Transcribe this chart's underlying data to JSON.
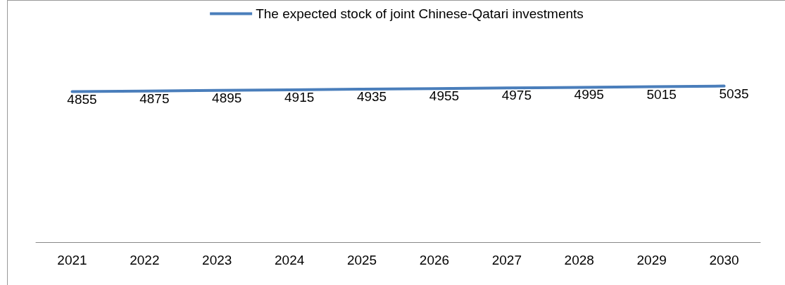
{
  "chart_data": {
    "type": "line",
    "categories": [
      "2021",
      "2022",
      "2023",
      "2024",
      "2025",
      "2026",
      "2027",
      "2028",
      "2029",
      "2030"
    ],
    "series": [
      {
        "name": "The expected stock of joint Chinese-Qatari investments",
        "color": "#4a7ebb",
        "values": [
          4855,
          4875,
          4895,
          4915,
          4935,
          4955,
          4975,
          4995,
          5015,
          5035
        ]
      }
    ],
    "tick_labels": "x",
    "data_labels": true,
    "legend": "top",
    "marker": "none",
    "line_style": "solid",
    "grid": false
  }
}
